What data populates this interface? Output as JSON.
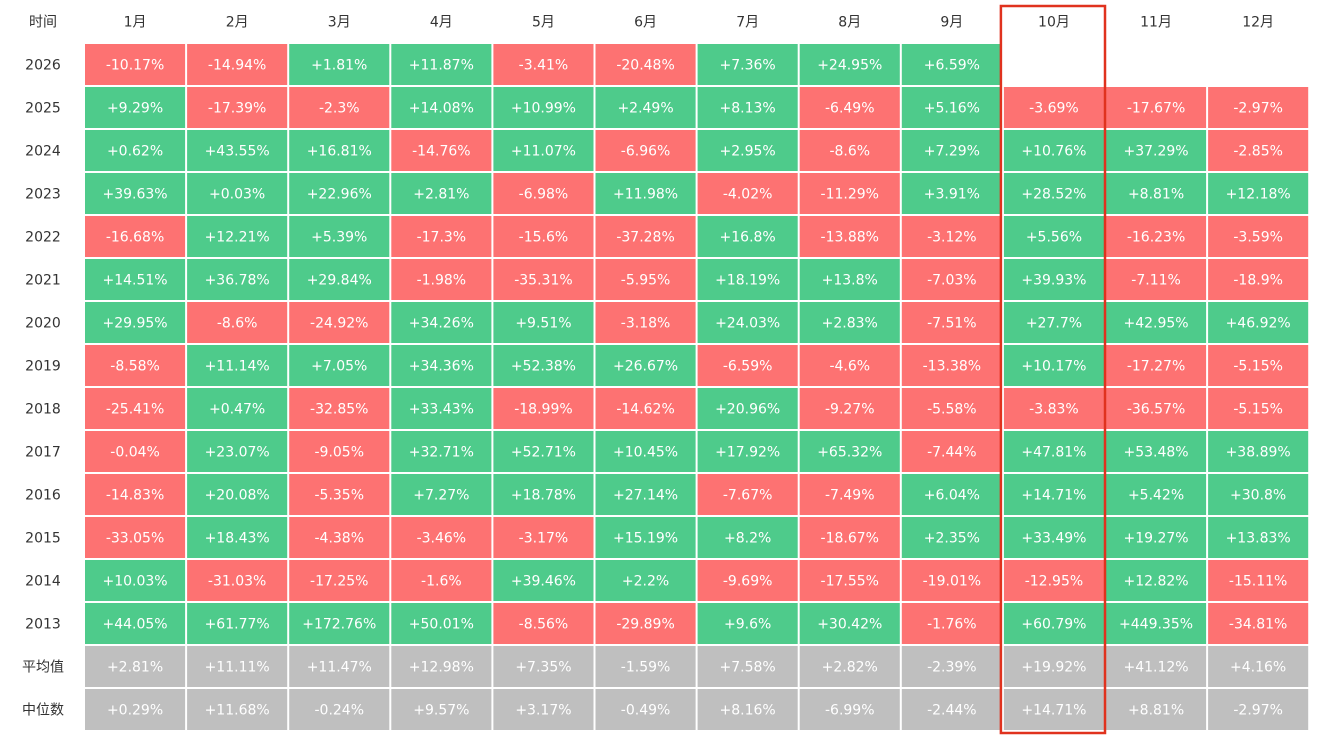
{
  "chart_data": {
    "type": "heatmap",
    "corner_label": "时间",
    "months": [
      "1月",
      "2月",
      "3月",
      "4月",
      "5月",
      "6月",
      "7月",
      "8月",
      "9月",
      "10月",
      "11月",
      "12月"
    ],
    "highlighted_month": "10月",
    "rows": [
      {
        "label": "2026",
        "values": [
          "-10.17%",
          "-14.94%",
          "+1.81%",
          "+11.87%",
          "-3.41%",
          "-20.48%",
          "+7.36%",
          "+24.95%",
          "+6.59%",
          "",
          "",
          ""
        ]
      },
      {
        "label": "2025",
        "values": [
          "+9.29%",
          "-17.39%",
          "-2.3%",
          "+14.08%",
          "+10.99%",
          "+2.49%",
          "+8.13%",
          "-6.49%",
          "+5.16%",
          "-3.69%",
          "-17.67%",
          "-2.97%"
        ]
      },
      {
        "label": "2024",
        "values": [
          "+0.62%",
          "+43.55%",
          "+16.81%",
          "-14.76%",
          "+11.07%",
          "-6.96%",
          "+2.95%",
          "-8.6%",
          "+7.29%",
          "+10.76%",
          "+37.29%",
          "-2.85%"
        ]
      },
      {
        "label": "2023",
        "values": [
          "+39.63%",
          "+0.03%",
          "+22.96%",
          "+2.81%",
          "-6.98%",
          "+11.98%",
          "-4.02%",
          "-11.29%",
          "+3.91%",
          "+28.52%",
          "+8.81%",
          "+12.18%"
        ]
      },
      {
        "label": "2022",
        "values": [
          "-16.68%",
          "+12.21%",
          "+5.39%",
          "-17.3%",
          "-15.6%",
          "-37.28%",
          "+16.8%",
          "-13.88%",
          "-3.12%",
          "+5.56%",
          "-16.23%",
          "-3.59%"
        ]
      },
      {
        "label": "2021",
        "values": [
          "+14.51%",
          "+36.78%",
          "+29.84%",
          "-1.98%",
          "-35.31%",
          "-5.95%",
          "+18.19%",
          "+13.8%",
          "-7.03%",
          "+39.93%",
          "-7.11%",
          "-18.9%"
        ]
      },
      {
        "label": "2020",
        "values": [
          "+29.95%",
          "-8.6%",
          "-24.92%",
          "+34.26%",
          "+9.51%",
          "-3.18%",
          "+24.03%",
          "+2.83%",
          "-7.51%",
          "+27.7%",
          "+42.95%",
          "+46.92%"
        ]
      },
      {
        "label": "2019",
        "values": [
          "-8.58%",
          "+11.14%",
          "+7.05%",
          "+34.36%",
          "+52.38%",
          "+26.67%",
          "-6.59%",
          "-4.6%",
          "-13.38%",
          "+10.17%",
          "-17.27%",
          "-5.15%"
        ]
      },
      {
        "label": "2018",
        "values": [
          "-25.41%",
          "+0.47%",
          "-32.85%",
          "+33.43%",
          "-18.99%",
          "-14.62%",
          "+20.96%",
          "-9.27%",
          "-5.58%",
          "-3.83%",
          "-36.57%",
          "-5.15%"
        ]
      },
      {
        "label": "2017",
        "values": [
          "-0.04%",
          "+23.07%",
          "-9.05%",
          "+32.71%",
          "+52.71%",
          "+10.45%",
          "+17.92%",
          "+65.32%",
          "-7.44%",
          "+47.81%",
          "+53.48%",
          "+38.89%"
        ]
      },
      {
        "label": "2016",
        "values": [
          "-14.83%",
          "+20.08%",
          "-5.35%",
          "+7.27%",
          "+18.78%",
          "+27.14%",
          "-7.67%",
          "-7.49%",
          "+6.04%",
          "+14.71%",
          "+5.42%",
          "+30.8%"
        ]
      },
      {
        "label": "2015",
        "values": [
          "-33.05%",
          "+18.43%",
          "-4.38%",
          "-3.46%",
          "-3.17%",
          "+15.19%",
          "+8.2%",
          "-18.67%",
          "+2.35%",
          "+33.49%",
          "+19.27%",
          "+13.83%"
        ]
      },
      {
        "label": "2014",
        "values": [
          "+10.03%",
          "-31.03%",
          "-17.25%",
          "-1.6%",
          "+39.46%",
          "+2.2%",
          "-9.69%",
          "-17.55%",
          "-19.01%",
          "-12.95%",
          "+12.82%",
          "-15.11%"
        ]
      },
      {
        "label": "2013",
        "values": [
          "+44.05%",
          "+61.77%",
          "+172.76%",
          "+50.01%",
          "-8.56%",
          "-29.89%",
          "+9.6%",
          "+30.42%",
          "-1.76%",
          "+60.79%",
          "+449.35%",
          "-34.81%"
        ]
      }
    ],
    "summary_rows": [
      {
        "label": "平均值",
        "values": [
          "+2.81%",
          "+11.11%",
          "+11.47%",
          "+12.98%",
          "+7.35%",
          "-1.59%",
          "+7.58%",
          "+2.82%",
          "-2.39%",
          "+19.92%",
          "+41.12%",
          "+4.16%"
        ]
      },
      {
        "label": "中位数",
        "values": [
          "+0.29%",
          "+11.68%",
          "-0.24%",
          "+9.57%",
          "+3.17%",
          "-0.49%",
          "+8.16%",
          "-6.99%",
          "-2.44%",
          "+14.71%",
          "+8.81%",
          "-2.97%"
        ]
      }
    ],
    "colors": {
      "positive": "#4ecb8b",
      "negative": "#fd7272",
      "summary": "#bfbfbf",
      "highlight_border": "#e0321e",
      "header_text": "#333333",
      "cell_text": "#ffffff"
    }
  }
}
